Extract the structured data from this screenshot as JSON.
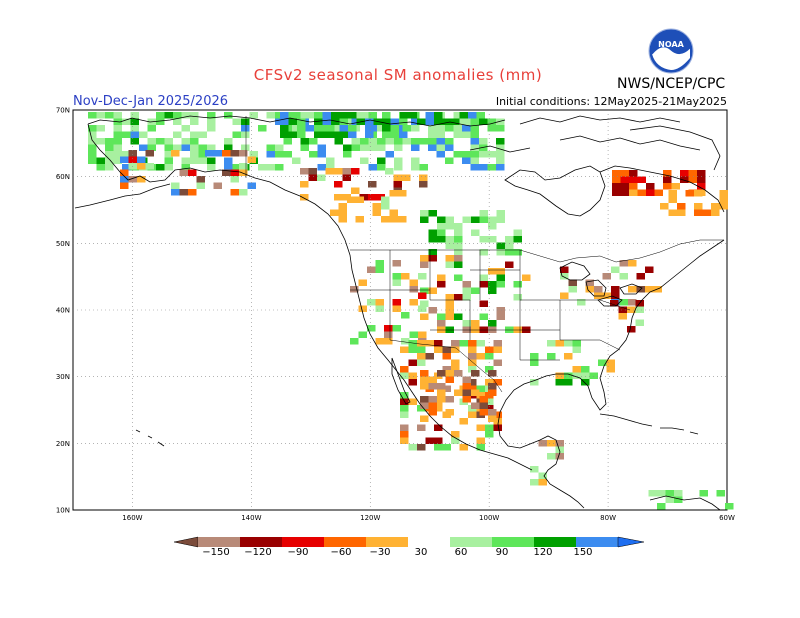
{
  "header": {
    "title": "CFSv2 seasonal SM anomalies (mm)",
    "period": "Nov-Dec-Jan 2025/2026",
    "initial_conditions": "Initial conditions: 12May2025-21May2025",
    "agency": "NWS/NCEP/CPC",
    "logo_text": "NOAA"
  },
  "axes": {
    "lat_labels": [
      "70N",
      "60N",
      "50N",
      "40N",
      "30N",
      "20N",
      "10N"
    ],
    "lon_labels": [
      "160W",
      "140W",
      "120W",
      "100W",
      "80W",
      "60W"
    ]
  },
  "colorbar": {
    "labels": [
      "−150",
      "−120",
      "−90",
      "−60",
      "−30",
      "30",
      "60",
      "90",
      "120",
      "150"
    ],
    "colors": {
      "lt150": "#7b4b3a",
      "m150_m120": "#b88a78",
      "m120_m90": "#990000",
      "m90_m60": "#e60000",
      "m60_m30": "#ff6600",
      "m30_0": "#ffb233",
      "neutral": "#ffffff",
      "p30_60": "#a8f0a0",
      "p60_90": "#5ee65a",
      "p90_120": "#00a000",
      "p120_150": "#00b020",
      "p150": "#3c8cf0",
      "gt150": "#1e6ef0"
    }
  },
  "chart_data": {
    "type": "heatmap",
    "title": "CFSv2 seasonal SM anomalies (mm)",
    "units": "mm",
    "lat_range": [
      10,
      70
    ],
    "lon_range": [
      -170,
      -60
    ],
    "color_bins": [
      -150,
      -120,
      -90,
      -60,
      -30,
      30,
      60,
      90,
      120,
      150
    ]
  }
}
